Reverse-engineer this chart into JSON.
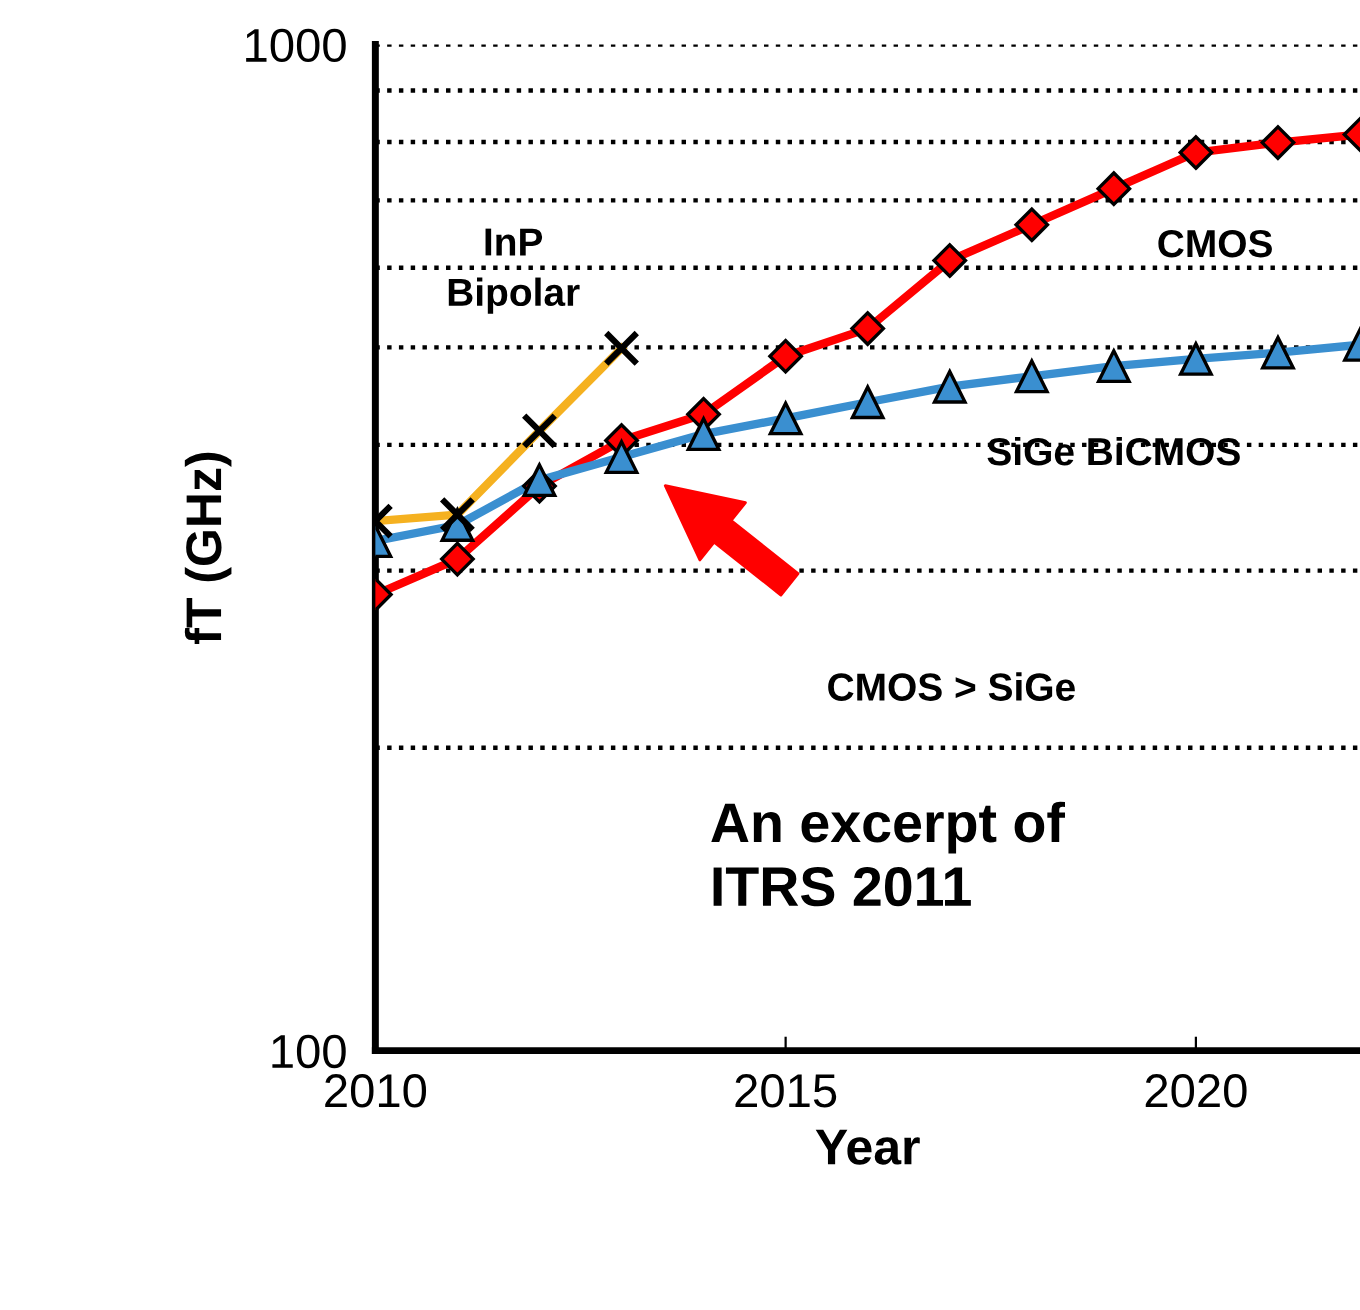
{
  "chart_data": {
    "type": "line",
    "xlabel": "Year",
    "ylabel": "fT (GHz)",
    "log": "y",
    "xlim": [
      2010,
      2022
    ],
    "xticks": [
      2010,
      2015,
      2020
    ],
    "ylim": [
      100,
      1000
    ],
    "yticks": [
      100,
      {
        "value": 200,
        "label": null
      },
      {
        "value": 300,
        "label": null
      },
      {
        "value": 400,
        "label": null
      },
      {
        "value": 500,
        "label": null
      },
      {
        "value": 600,
        "label": null
      },
      {
        "value": 700,
        "label": null
      },
      {
        "value": 800,
        "label": null
      },
      {
        "value": 900,
        "label": null
      },
      1000
    ],
    "grid": "y",
    "line_style": "solid",
    "x": [
      2010,
      2011,
      2012,
      2013,
      2014,
      2015,
      2016,
      2017,
      2018,
      2019,
      2020,
      2021,
      2022
    ],
    "series": [
      {
        "name": "CMOS",
        "color": "#ff0000",
        "marker": "diamond",
        "values": [
          284,
          308,
          364,
          404,
          429,
          490,
          522,
          610,
          662,
          719,
          781,
          799,
          814
        ]
      },
      {
        "name": "SiGe BiCMOS",
        "color": "#3a8fd0",
        "marker": "triangle",
        "values": [
          321,
          333,
          369,
          389,
          410,
          425,
          441,
          457,
          468,
          479,
          487,
          494,
          503
        ]
      },
      {
        "name": "InP\nBipolar",
        "color": "#f5b120",
        "marker": "cross",
        "x": [
          2010,
          2011,
          2012,
          2013
        ],
        "values": [
          336,
          341,
          413,
          499
        ]
      }
    ],
    "annotations": [
      "CMOS > SiGe",
      "An excerpt of\nITRS 2011"
    ]
  }
}
